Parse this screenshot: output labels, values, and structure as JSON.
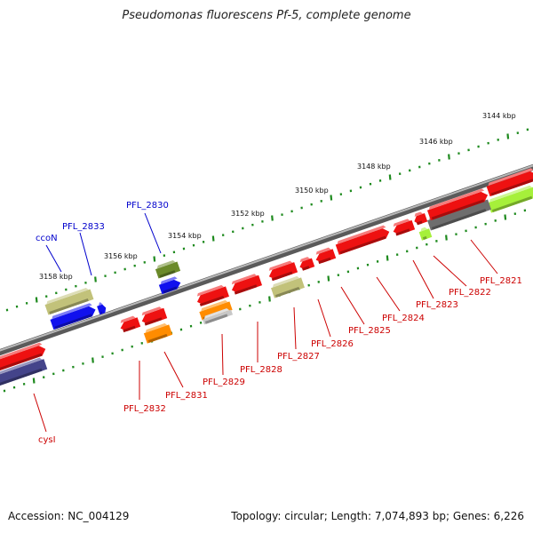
{
  "title": "Pseudomonas fluorescens Pf-5, complete genome",
  "footer": {
    "accession_label": "Accession:",
    "accession": "NC_004129",
    "topology_label": "Topology:",
    "topology": "circular",
    "length_label": "Length:",
    "length": "7,074,893 bp",
    "genes_label": "Genes:",
    "genes": "6,226"
  },
  "colors": {
    "backbone": "#8a8a8a",
    "tick": "#1e8a1e",
    "label_forward": "#0000cc",
    "label_reverse": "#cc0000",
    "gene_red": "#ee1111",
    "gene_blue": "#1111ee",
    "gene_olive": "#c2c27a",
    "gene_darkgreen": "#6b8a2a",
    "gene_orange": "#ff8c00",
    "gene_gray": "#6e6e6e",
    "gene_lime": "#a6f03a",
    "gene_navy": "#44448a",
    "gene_silver": "#c8c8c8"
  },
  "scale_labels": [
    "3144 kbp",
    "3146 kbp",
    "3148 kbp",
    "3150 kbp",
    "3152 kbp",
    "3154 kbp",
    "3156 kbp",
    "3158 kbp"
  ],
  "forward_genes": [
    {
      "label": "PFL_2830",
      "color": "gene_darkgreen"
    },
    {
      "label": "PFL_2833",
      "color": "gene_olive"
    },
    {
      "label": "ccoN",
      "color": "gene_blue"
    }
  ],
  "reverse_genes": [
    {
      "label": "PFL_2821",
      "color": "gene_red"
    },
    {
      "label": "PFL_2822",
      "color": "gene_gray"
    },
    {
      "label": "PFL_2823",
      "color": "gene_red"
    },
    {
      "label": "PFL_2824",
      "color": "gene_red"
    },
    {
      "label": "PFL_2825",
      "color": "gene_red"
    },
    {
      "label": "PFL_2826",
      "color": "gene_red"
    },
    {
      "label": "PFL_2827",
      "color": "gene_olive"
    },
    {
      "label": "PFL_2828",
      "color": "gene_red"
    },
    {
      "label": "PFL_2829",
      "color": "gene_orange"
    },
    {
      "label": "PFL_2831",
      "color": "gene_orange"
    },
    {
      "label": "PFL_2832",
      "color": "gene_red"
    },
    {
      "label": "cysI",
      "color": "gene_navy"
    }
  ]
}
